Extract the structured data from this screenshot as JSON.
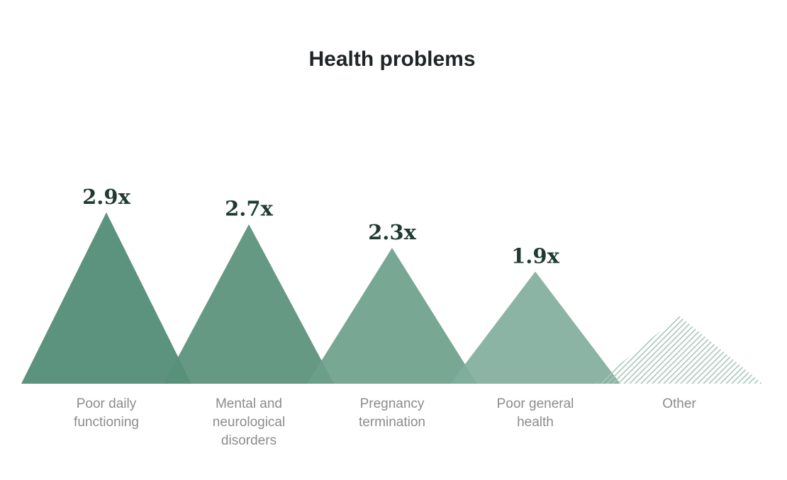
{
  "chart_data": {
    "type": "bar",
    "title": "Health problems",
    "xlabel": "",
    "ylabel": "",
    "ylim": [
      0,
      2.9
    ],
    "grid": false,
    "legend": "none",
    "categories": [
      [
        "Poor daily",
        "functioning"
      ],
      [
        "Mental and",
        "neurological",
        "disorders"
      ],
      [
        "Pregnancy",
        "termination"
      ],
      [
        "Poor general",
        "health"
      ],
      [
        "Other"
      ]
    ],
    "values": [
      2.9,
      2.7,
      2.3,
      1.9,
      null
    ],
    "labels": [
      "2.9x",
      "2.7x",
      "2.3x",
      "1.9x",
      ""
    ],
    "colors": [
      "#4e8a73",
      "#58907a",
      "#6ca08b",
      "#82ae9c",
      "#a9c7bb"
    ],
    "other_style": "hatched"
  }
}
